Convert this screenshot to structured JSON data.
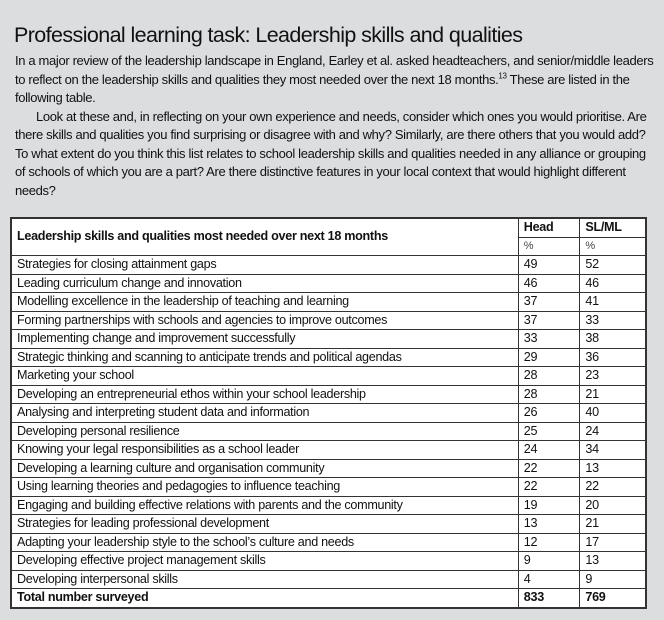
{
  "title": "Professional learning task: Leadership skills and qualities",
  "intro": {
    "p1_before": "In a major review of the leadership landscape in England, Earley et al. asked headteachers, and senior/middle leaders to reflect on the leadership skills and qualities they most needed over the next 18 months.",
    "p1_footnote": "13",
    "p1_after": " These are listed in the following table.",
    "p2": "Look at these and, in reflecting on your own experience and needs, consider which ones you would prioritise. Are there skills and qualities you find surprising or disagree with and why? Similarly, are there others that you would add? To what extent do you think this list relates to school leadership skills and qualities needed in any alliance or grouping of schools of which you are a part? Are there distinctive features in your local context that would highlight different needs?"
  },
  "table": {
    "header": {
      "label": "Leadership skills and qualities most needed over next 18 months",
      "col_head": "Head",
      "col_slml": "SL/ML",
      "unit_head": "%",
      "unit_slml": "%"
    },
    "rows": [
      {
        "skill": "Strategies for closing attainment gaps",
        "head": "49",
        "slml": "52"
      },
      {
        "skill": "Leading curriculum change and innovation",
        "head": "46",
        "slml": "46"
      },
      {
        "skill": "Modelling excellence in the leadership of teaching and learning",
        "head": "37",
        "slml": "41"
      },
      {
        "skill": "Forming partnerships with schools and agencies to improve outcomes",
        "head": "37",
        "slml": "33"
      },
      {
        "skill": "Implementing change and improvement successfully",
        "head": "33",
        "slml": "38"
      },
      {
        "skill": "Strategic thinking and scanning to anticipate trends and political agendas",
        "head": "29",
        "slml": "36"
      },
      {
        "skill": "Marketing your school",
        "head": "28",
        "slml": "23"
      },
      {
        "skill": "Developing an entrepreneurial ethos within your school leadership",
        "head": "28",
        "slml": "21"
      },
      {
        "skill": "Analysing and interpreting student data and information",
        "head": "26",
        "slml": "40"
      },
      {
        "skill": "Developing personal resilience",
        "head": "25",
        "slml": "24"
      },
      {
        "skill": "Knowing your legal responsibilities as a school leader",
        "head": "24",
        "slml": "34"
      },
      {
        "skill": "Developing a learning culture and organisation community",
        "head": "22",
        "slml": "13"
      },
      {
        "skill": "Using learning theories and pedagogies to influence teaching",
        "head": "22",
        "slml": "22"
      },
      {
        "skill": "Engaging and building effective relations with parents and the community",
        "head": "19",
        "slml": "20"
      },
      {
        "skill": "Strategies for leading professional development",
        "head": "13",
        "slml": "21"
      },
      {
        "skill": "Adapting your leadership style to the school’s culture and needs",
        "head": "12",
        "slml": "17"
      },
      {
        "skill": "Developing effective project management skills",
        "head": "9",
        "slml": "13"
      },
      {
        "skill": "Developing interpersonal skills",
        "head": "4",
        "slml": "9"
      }
    ],
    "total": {
      "label": "Total number surveyed",
      "head": "833",
      "slml": "769"
    }
  }
}
